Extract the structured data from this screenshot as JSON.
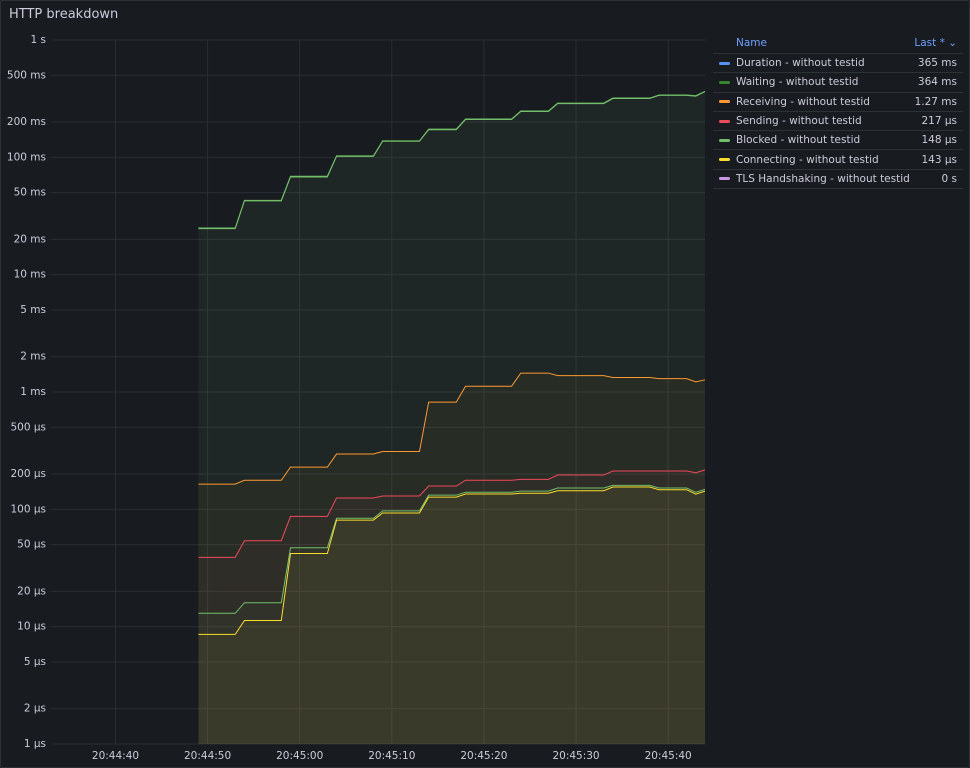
{
  "panel_title": "HTTP breakdown",
  "legend": {
    "headers": [
      "Name",
      "Last *"
    ]
  },
  "chart_data": {
    "type": "line",
    "log_scale": true,
    "grid": true,
    "legend_position": "right",
    "x": [
      "20:44:49",
      "20:44:53",
      "20:44:54",
      "20:44:58",
      "20:44:59",
      "20:45:03",
      "20:45:04",
      "20:45:08",
      "20:45:09",
      "20:45:13",
      "20:45:14",
      "20:45:17",
      "20:45:18",
      "20:45:23",
      "20:45:24",
      "20:45:27",
      "20:45:28",
      "20:45:33",
      "20:45:34",
      "20:45:38",
      "20:45:39",
      "20:45:42",
      "20:45:43",
      "20:45:44"
    ],
    "xlim": [
      "20:44:33",
      "20:45:44"
    ],
    "xticks": [
      "20:44:40",
      "20:44:50",
      "20:45:00",
      "20:45:10",
      "20:45:20",
      "20:45:30",
      "20:45:40"
    ],
    "ylim": [
      1e-06,
      1
    ],
    "yticks": [
      {
        "value": 1,
        "label": "1 s"
      },
      {
        "value": 0.5,
        "label": "500 ms"
      },
      {
        "value": 0.2,
        "label": "200 ms"
      },
      {
        "value": 0.1,
        "label": "100 ms"
      },
      {
        "value": 0.05,
        "label": "50 ms"
      },
      {
        "value": 0.02,
        "label": "20 ms"
      },
      {
        "value": 0.01,
        "label": "10 ms"
      },
      {
        "value": 0.005,
        "label": "5 ms"
      },
      {
        "value": 0.002,
        "label": "2 ms"
      },
      {
        "value": 0.001,
        "label": "1 ms"
      },
      {
        "value": 0.0005,
        "label": "500 µs"
      },
      {
        "value": 0.0002,
        "label": "200 µs"
      },
      {
        "value": 0.0001,
        "label": "100 µs"
      },
      {
        "value": 5e-05,
        "label": "50 µs"
      },
      {
        "value": 2e-05,
        "label": "20 µs"
      },
      {
        "value": 1e-05,
        "label": "10 µs"
      },
      {
        "value": 5e-06,
        "label": "5 µs"
      },
      {
        "value": 2e-06,
        "label": "2 µs"
      },
      {
        "value": 1e-06,
        "label": "1 µs"
      }
    ],
    "series": [
      {
        "name": "Duration - without testid",
        "color": "#5794f2",
        "line_color": "#73bf69",
        "last": {
          "value": 0.365,
          "label": "365 ms"
        },
        "values": [
          0.025,
          0.025,
          0.043,
          0.043,
          0.069,
          0.069,
          0.103,
          0.103,
          0.138,
          0.138,
          0.174,
          0.174,
          0.212,
          0.212,
          0.248,
          0.248,
          0.29,
          0.29,
          0.32,
          0.32,
          0.34,
          0.34,
          0.335,
          0.365
        ]
      },
      {
        "name": "Waiting - without testid",
        "color": "#37872d",
        "line_color": "#73bf69",
        "last": {
          "value": 0.364,
          "label": "364 ms"
        },
        "values": [
          0.0247,
          0.0247,
          0.0426,
          0.0426,
          0.068,
          0.068,
          0.102,
          0.102,
          0.137,
          0.137,
          0.172,
          0.172,
          0.21,
          0.21,
          0.246,
          0.246,
          0.287,
          0.287,
          0.317,
          0.317,
          0.337,
          0.337,
          0.332,
          0.364
        ]
      },
      {
        "name": "Receiving - without testid",
        "color": "#ff9830",
        "last": {
          "value": 0.00127,
          "label": "1.27 ms"
        },
        "values": [
          0.000164,
          0.000164,
          0.000177,
          0.000177,
          0.000229,
          0.000229,
          0.000296,
          0.000296,
          0.000311,
          0.000311,
          0.00082,
          0.00082,
          0.00112,
          0.00112,
          0.00145,
          0.00145,
          0.00138,
          0.00138,
          0.00133,
          0.00133,
          0.0013,
          0.0013,
          0.00122,
          0.00127
        ]
      },
      {
        "name": "Sending - without testid",
        "color": "#f2495c",
        "last": {
          "value": 0.000217,
          "label": "217 µs"
        },
        "values": [
          3.9e-05,
          3.9e-05,
          5.4e-05,
          5.4e-05,
          8.7e-05,
          8.7e-05,
          0.000125,
          0.000125,
          0.00013,
          0.00013,
          0.000158,
          0.000158,
          0.000177,
          0.000177,
          0.00018,
          0.00018,
          0.000196,
          0.000196,
          0.000212,
          0.000212,
          0.000212,
          0.000212,
          0.000205,
          0.000217
        ]
      },
      {
        "name": "Blocked - without testid",
        "color": "#73bf69",
        "last": {
          "value": 0.000148,
          "label": "148 µs"
        },
        "values": [
          1.3e-05,
          1.3e-05,
          1.6e-05,
          1.6e-05,
          4.7e-05,
          4.7e-05,
          8.4e-05,
          8.4e-05,
          9.7e-05,
          9.7e-05,
          0.000132,
          0.000132,
          0.00014,
          0.00014,
          0.000143,
          0.000143,
          0.000152,
          0.000152,
          0.00016,
          0.00016,
          0.000152,
          0.000152,
          0.00014,
          0.000148
        ]
      },
      {
        "name": "Connecting - without testid",
        "color": "#fade2a",
        "last": {
          "value": 0.000143,
          "label": "143 µs"
        },
        "values": [
          8.6e-06,
          8.6e-06,
          1.13e-05,
          1.13e-05,
          4.2e-05,
          4.2e-05,
          8.1e-05,
          8.1e-05,
          9.3e-05,
          9.3e-05,
          0.000127,
          0.000127,
          0.000135,
          0.000135,
          0.000137,
          0.000137,
          0.000144,
          0.000144,
          0.000155,
          0.000155,
          0.000147,
          0.000147,
          0.000135,
          0.000143
        ]
      },
      {
        "name": "TLS Handshaking - without testid",
        "color": "#ca95e5",
        "last": {
          "value": 0,
          "label": "0 s"
        }
      }
    ]
  }
}
